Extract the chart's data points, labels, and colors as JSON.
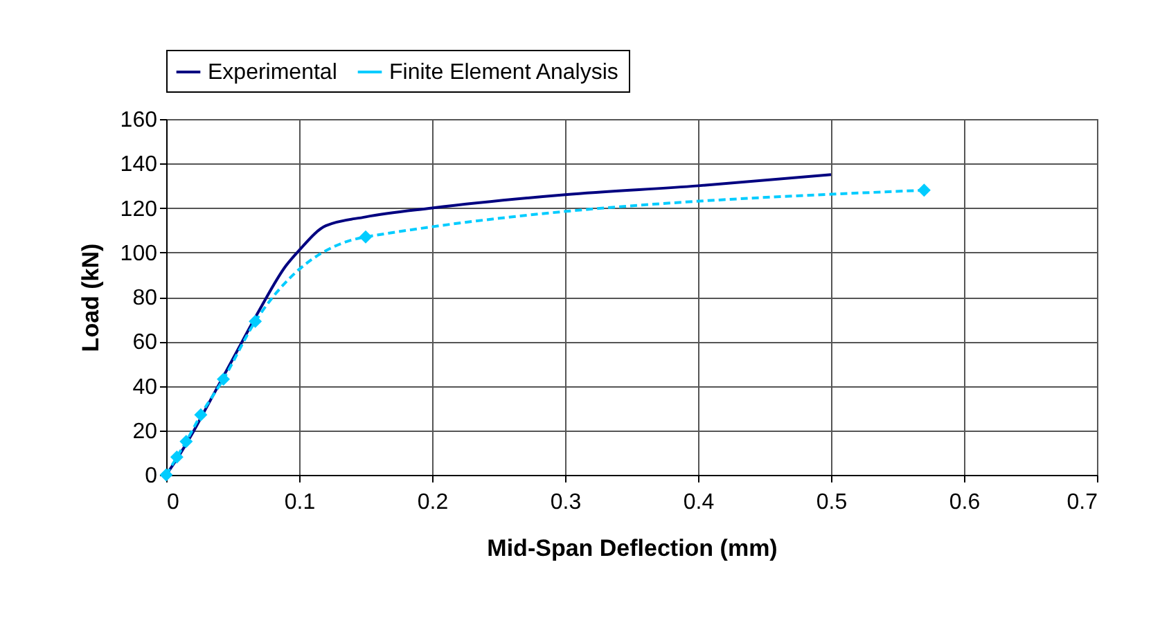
{
  "chart_data": {
    "type": "line",
    "xlabel": "Mid-Span Deflection (mm)",
    "ylabel": "Load (kN)",
    "xlim": [
      0,
      0.7
    ],
    "xticks": [
      0,
      0.1,
      0.2,
      0.3,
      0.4,
      0.5,
      0.6,
      0.7
    ],
    "ylim": [
      0,
      160
    ],
    "yticks": [
      0,
      20,
      40,
      60,
      80,
      100,
      120,
      140,
      160
    ],
    "grid": true,
    "legend": "top",
    "series": [
      {
        "name": "Experimental",
        "color": "#000080",
        "marker": "none",
        "line_style": "solid",
        "x": [
          0,
          0.01,
          0.02,
          0.03,
          0.05,
          0.07,
          0.09,
          0.1,
          0.12,
          0.15,
          0.2,
          0.3,
          0.4,
          0.5
        ],
        "values": [
          0,
          9,
          19,
          30,
          52,
          74,
          94,
          101,
          112,
          116,
          120,
          126,
          130,
          135
        ]
      },
      {
        "name": "Finite Element Analysis",
        "color": "#00ccff",
        "marker": "diamond",
        "line_style": "dashed",
        "x": [
          0,
          0.008,
          0.015,
          0.026,
          0.043,
          0.067,
          0.15,
          0.57
        ],
        "values": [
          0,
          8,
          15,
          27,
          43,
          69,
          107,
          128
        ]
      }
    ]
  }
}
